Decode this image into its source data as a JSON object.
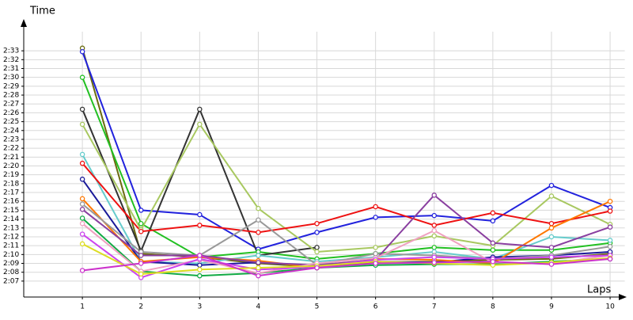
{
  "chart_data": {
    "type": "line",
    "y_label": "Time",
    "x_label": "Laps",
    "x": [
      1,
      2,
      3,
      4,
      5,
      6,
      7,
      8,
      9,
      10
    ],
    "xlim": [
      0,
      10.25
    ],
    "xticks": [
      1,
      2,
      3,
      4,
      5,
      6,
      7,
      8,
      9,
      10
    ],
    "ylim": [
      125.2,
      156.5
    ],
    "yticks": [
      {
        "value": 127,
        "label": "2:07"
      },
      {
        "value": 128,
        "label": "2:08"
      },
      {
        "value": 129,
        "label": "2:09"
      },
      {
        "value": 130,
        "label": "2:10"
      },
      {
        "value": 131,
        "label": "2:11"
      },
      {
        "value": 132,
        "label": "2:12"
      },
      {
        "value": 133,
        "label": "2:13"
      },
      {
        "value": 134,
        "label": "2:14"
      },
      {
        "value": 135,
        "label": "2:15"
      },
      {
        "value": 136,
        "label": "2:16"
      },
      {
        "value": 137,
        "label": "2:17"
      },
      {
        "value": 138,
        "label": "2:18"
      },
      {
        "value": 139,
        "label": "2:19"
      },
      {
        "value": 140,
        "label": "2:20"
      },
      {
        "value": 141,
        "label": "2:21"
      },
      {
        "value": 142,
        "label": "2:22"
      },
      {
        "value": 143,
        "label": "2:23"
      },
      {
        "value": 144,
        "label": "2:24"
      },
      {
        "value": 145,
        "label": "2:25"
      },
      {
        "value": 146,
        "label": "2:26"
      },
      {
        "value": 147,
        "label": "2:27"
      },
      {
        "value": 148,
        "label": "2:28"
      },
      {
        "value": 149,
        "label": "2:29"
      },
      {
        "value": 150,
        "label": "2:30"
      },
      {
        "value": 151,
        "label": "2:31"
      },
      {
        "value": 152,
        "label": "2:32"
      },
      {
        "value": 153,
        "label": "2:33"
      }
    ],
    "grid": true,
    "series": [
      {
        "color": "#6b6b10",
        "values": [
          153.3,
          130.1,
          129.7,
          129.0,
          128.6,
          129.1,
          129.2,
          129.4,
          129.5,
          130.1
        ]
      },
      {
        "color": "#2222dd",
        "values": [
          152.9,
          135.0,
          134.5,
          130.6,
          132.5,
          134.2,
          134.4,
          133.8,
          137.8,
          135.3
        ]
      },
      {
        "color": "#22c022",
        "values": [
          150.0,
          133.5,
          129.7,
          130.3,
          129.5,
          130.1,
          130.8,
          130.5,
          130.5,
          131.3
        ]
      },
      {
        "color": "#333333",
        "values": [
          146.4,
          130.4,
          146.4,
          129.9,
          130.8,
          null,
          null,
          null,
          null,
          null
        ]
      },
      {
        "color": "#a8c860",
        "values": [
          144.7,
          132.8,
          144.7,
          135.2,
          130.3,
          130.8,
          132.1,
          131.0,
          136.6,
          133.4
        ]
      },
      {
        "color": "#66cccc",
        "values": [
          141.3,
          129.2,
          129.0,
          129.9,
          129.2,
          129.7,
          130.3,
          129.5,
          132.0,
          131.6
        ]
      },
      {
        "color": "#ee1111",
        "values": [
          140.3,
          132.6,
          133.3,
          132.5,
          133.5,
          135.4,
          133.3,
          134.7,
          133.5,
          134.9
        ]
      },
      {
        "color": "#1a1a99",
        "values": [
          138.5,
          129.2,
          128.8,
          129.1,
          128.7,
          129.2,
          129.1,
          129.7,
          129.9,
          130.3
        ]
      },
      {
        "color": "#ff7700",
        "values": [
          136.3,
          129.2,
          129.7,
          129.3,
          128.5,
          129.5,
          129.4,
          129.0,
          133.0,
          136.0
        ]
      },
      {
        "color": "#999999",
        "values": [
          135.7,
          130.3,
          129.9,
          133.9,
          128.8,
          130.1,
          129.9,
          129.5,
          129.9,
          130.9
        ]
      },
      {
        "color": "#8a3fa0",
        "values": [
          135.1,
          129.9,
          129.9,
          129.1,
          128.8,
          129.4,
          136.7,
          131.3,
          130.8,
          133.1
        ]
      },
      {
        "color": "#11aa44",
        "values": [
          134.1,
          128.1,
          127.6,
          127.9,
          128.5,
          128.8,
          128.9,
          128.9,
          129.2,
          129.5
        ]
      },
      {
        "color": "#f0a0c0",
        "values": [
          133.5,
          128.1,
          129.4,
          127.9,
          129.0,
          129.6,
          132.7,
          129.1,
          129.0,
          129.9
        ]
      },
      {
        "color": "#cc44ee",
        "values": [
          132.3,
          127.4,
          129.5,
          128.3,
          128.6,
          129.4,
          129.7,
          129.5,
          129.7,
          129.9
        ]
      },
      {
        "color": "#dddd22",
        "values": [
          131.2,
          127.8,
          128.3,
          128.5,
          128.7,
          129.2,
          129.0,
          128.8,
          129.1,
          129.6
        ]
      },
      {
        "color": "#cc33cc",
        "values": [
          128.2,
          129.0,
          129.9,
          127.6,
          128.5,
          129.0,
          129.1,
          129.2,
          128.9,
          129.5
        ]
      }
    ]
  }
}
